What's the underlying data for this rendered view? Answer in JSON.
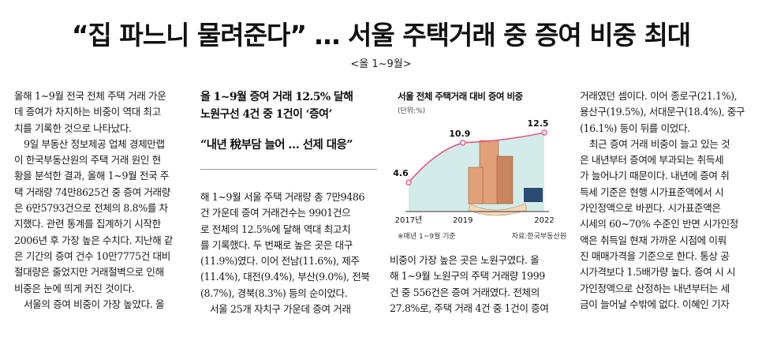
{
  "headline": "“집 파느니 물려준다” … 서울 주택거래 중 증여 비중 최대",
  "subhead": "<올 1~9월>",
  "column1": [
    {
      "text": "올해 1~9월 전국 전체 주택 거래 가운",
      "indent": false
    },
    {
      "text": "데 증여가 차지하는 비중이 역대 최고",
      "indent": false
    },
    {
      "text": "치를 기록한 것으로 나타났다.",
      "indent": false
    },
    {
      "text": "9일 부동산 정보제공 업체 경제만랩",
      "indent": true
    },
    {
      "text": "이 한국부동산원의 주택 거래 원인 현",
      "indent": false
    },
    {
      "text": "황을 분석한 결과, 올해 1~9월 전국 주",
      "indent": false
    },
    {
      "text": "택 거래량 74만8625건 중 증여 거래량",
      "indent": false
    },
    {
      "text": "은 6만5793건으로 전체의 8.8%를 차",
      "indent": false
    },
    {
      "text": "지했다. 관련 통계를 집계하기 시작한",
      "indent": false
    },
    {
      "text": "2006년 후 가장 높은 수치다. 지난해 같",
      "indent": false
    },
    {
      "text": "은 기간의 증여 건수 10만7775건 대비",
      "indent": false
    },
    {
      "text": "절대량은 줄었지만 거래절벽으로 인해",
      "indent": false
    },
    {
      "text": "비중은 눈에 띄게 커진 것이다.",
      "indent": false
    },
    {
      "text": "서울의 증여 비중이 가장 높았다. 올",
      "indent": true
    }
  ],
  "subtitle_box": {
    "line1": "올 1~9월 증여 거래 12.5% 달해",
    "line2": "노원구선 4건 중 1건이 ‘증여’",
    "line3": "“내년 稅부담 늘어 … 선제 대응”"
  },
  "column2": [
    {
      "text": "해 1~9월 서울 주택 거래량 총 7만9486",
      "indent": false
    },
    {
      "text": "건 가운데 증여 거래건수는 9901건으",
      "indent": false
    },
    {
      "text": "로 전체의 12.5%에 달해 역대 최고치",
      "indent": false
    },
    {
      "text": "를 기록했다. 두 번째로 높은 곳은 대구",
      "indent": false
    },
    {
      "text": "(11.9%)였다. 이어 전남(11.6%), 제주",
      "indent": false
    },
    {
      "text": "(11.4%), 대전(9.4%), 부산(9.0%), 전북",
      "indent": false
    },
    {
      "text": "(8.7%), 경북(8.3%) 등의 순이었다.",
      "indent": false
    },
    {
      "text": "서울 25개 자치구 가운데 증여 거래",
      "indent": true
    }
  ],
  "column3": [
    {
      "text": "비중이 가장 높은 곳은 노원구였다. 올",
      "indent": false
    },
    {
      "text": "해 1~9월 노원구의 주택 거래량 1999",
      "indent": false
    },
    {
      "text": "건 중 556건은 증여 거래였다. 전체의",
      "indent": false
    },
    {
      "text": "27.8%로, 주택 거래 4건 중 1건이 증여",
      "indent": false
    }
  ],
  "column4": [
    {
      "text": "거래였던 셈이다. 이어 종로구(21.1%),",
      "indent": false
    },
    {
      "text": "용산구(19.5%), 서대문구(18.4%), 중구",
      "indent": false
    },
    {
      "text": "(16.1%) 등이 뒤를 이었다.",
      "indent": false
    },
    {
      "text": "최근 증여 거래 비중이 늘고 있는 것",
      "indent": true
    },
    {
      "text": "은 내년부터 증여에 부과되는 취득세",
      "indent": false
    },
    {
      "text": "가 늘어나기 때문이다. 내년에 증여 취",
      "indent": false
    },
    {
      "text": "득세 기준은 현행 시가표준액에서 시",
      "indent": false
    },
    {
      "text": "가인정액으로 바뀐다. 시가표준액은",
      "indent": false
    },
    {
      "text": "시세의 60~70% 수준인 반면 시가인정",
      "indent": false
    },
    {
      "text": "액은 취득일 현재 가까운 시점에 이뤄",
      "indent": false
    },
    {
      "text": "진 매매가격을 기준으로 한다. 통상 공",
      "indent": false
    },
    {
      "text": "시가격보다 1.5배가량 높다. 증여 시 시",
      "indent": false
    },
    {
      "text": "가인정액으로 산정하는 내년부터는 세",
      "indent": false
    },
    {
      "text": "금이 늘어날 수밖에 없다.   이혜인 기자",
      "indent": false
    }
  ],
  "chart_data": {
    "type": "area",
    "title": "서울 전체 주택거래 대비 증여 비중",
    "unit": "(단위:%)",
    "x": [
      2017,
      2019,
      2022
    ],
    "x_tick_labels": [
      "2017년",
      "2019",
      "2022"
    ],
    "values": [
      4.6,
      10.9,
      12.5
    ],
    "value_labels": [
      "4.6",
      "10.9",
      "12.5"
    ],
    "ylim": [
      0,
      15
    ],
    "note": "※매년 1~9월 기준",
    "source": "자료:한국부동산원",
    "colors": {
      "fill": "#d3ece9",
      "line": "#e35a86",
      "marker_fill": "#ffffff",
      "axis": "#333333"
    }
  }
}
